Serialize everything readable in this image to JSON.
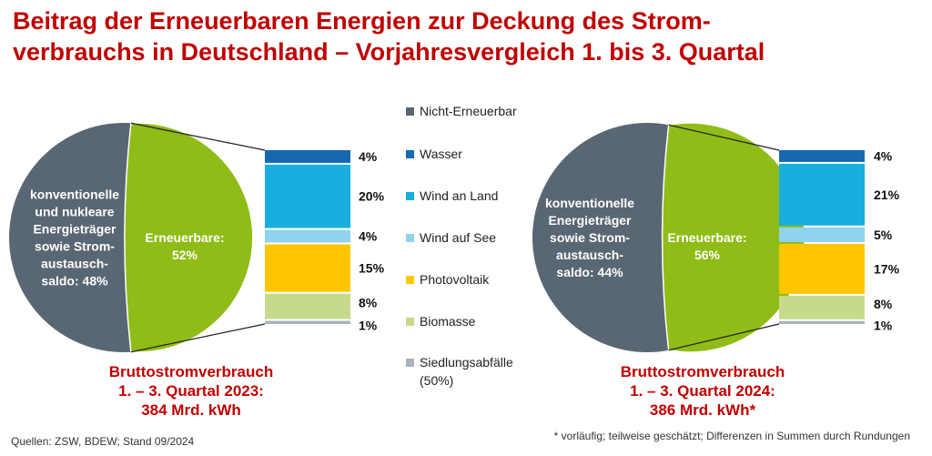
{
  "title": {
    "line1": "Beitrag der Erneuerbaren Energien zur Deckung des Strom-",
    "line2": "verbrauchs in Deutschland – Vorjahresvergleich 1. bis 3. Quartal"
  },
  "colors": {
    "non_renewable": "#596673",
    "renewable": "#8fbc16",
    "wasser": "#1669b0",
    "wind_land": "#1aaee0",
    "wind_see": "#8fd3ee",
    "pv": "#fdc600",
    "biomasse": "#c6da8c",
    "siedlung": "#a9b3bd",
    "accent": "#c00000"
  },
  "legend": [
    {
      "label": "Nicht-Erneuerbar",
      "color_key": "non_renewable"
    },
    {
      "label": "Wasser",
      "color_key": "wasser"
    },
    {
      "label": "Wind an Land",
      "color_key": "wind_land"
    },
    {
      "label": "Wind auf See",
      "color_key": "wind_see"
    },
    {
      "label": "Photovoltaik",
      "color_key": "pv"
    },
    {
      "label": "Biomasse",
      "color_key": "biomasse"
    },
    {
      "label": "Siedlungsabfälle",
      "sub": "(50%)",
      "color_key": "siedlung"
    }
  ],
  "chart_data": [
    {
      "type": "pie",
      "year": "2023",
      "slices": [
        {
          "name": "Nicht-Erneuerbar",
          "value": 48,
          "label": "konventionelle und nukleare Energieträger sowie Strom- austausch- saldo: 48%",
          "lines": [
            "konventionelle",
            "und nukleare",
            "Energieträger",
            "sowie Strom-",
            "austausch-",
            "saldo: 48%"
          ]
        },
        {
          "name": "Erneuerbare",
          "value": 52,
          "label": "Erneuerbare: 52%",
          "lines": [
            "Erneuerbare:",
            "52%"
          ]
        }
      ],
      "breakdown": {
        "type": "stacked-bar",
        "segments": [
          {
            "name": "Wasser",
            "value": 4,
            "label": "4%"
          },
          {
            "name": "Wind an Land",
            "value": 20,
            "label": "20%"
          },
          {
            "name": "Wind auf See",
            "value": 4,
            "label": "4%"
          },
          {
            "name": "Photovoltaik",
            "value": 15,
            "label": "15%"
          },
          {
            "name": "Biomasse",
            "value": 8,
            "label": "8%"
          },
          {
            "name": "Siedlungsabfälle (50%)",
            "value": 1,
            "label": "1%"
          }
        ]
      },
      "caption": [
        "Bruttostromverbrauch",
        "1. – 3. Quartal 2023:",
        "384 Mrd. kWh"
      ]
    },
    {
      "type": "pie",
      "year": "2024",
      "slices": [
        {
          "name": "Nicht-Erneuerbar",
          "value": 44,
          "label": "konventionelle Energieträger sowie Strom- austausch- saldo: 44%",
          "lines": [
            "konventionelle",
            "Energieträger",
            "sowie Strom-",
            "austausch-",
            "saldo: 44%"
          ]
        },
        {
          "name": "Erneuerbare",
          "value": 56,
          "label": "Erneuerbare: 56%",
          "lines": [
            "Erneuerbare:",
            "56%"
          ]
        }
      ],
      "breakdown": {
        "type": "stacked-bar",
        "segments": [
          {
            "name": "Wasser",
            "value": 4,
            "label": "4%"
          },
          {
            "name": "Wind an Land",
            "value": 21,
            "label": "21%"
          },
          {
            "name": "Wind auf See",
            "value": 5,
            "label": "5%"
          },
          {
            "name": "Photovoltaik",
            "value": 17,
            "label": "17%"
          },
          {
            "name": "Biomasse",
            "value": 8,
            "label": "8%"
          },
          {
            "name": "Siedlungsabfälle (50%)",
            "value": 1,
            "label": "1%"
          }
        ]
      },
      "caption": [
        "Bruttostromverbrauch",
        "1. – 3. Quartal 2024:",
        "386 Mrd. kWh*"
      ]
    }
  ],
  "footer": {
    "source": "Quellen: ZSW, BDEW; Stand 09/2024",
    "note": "* vorläufig; teilweise geschätzt; Differenzen in Summen durch Rundungen"
  }
}
